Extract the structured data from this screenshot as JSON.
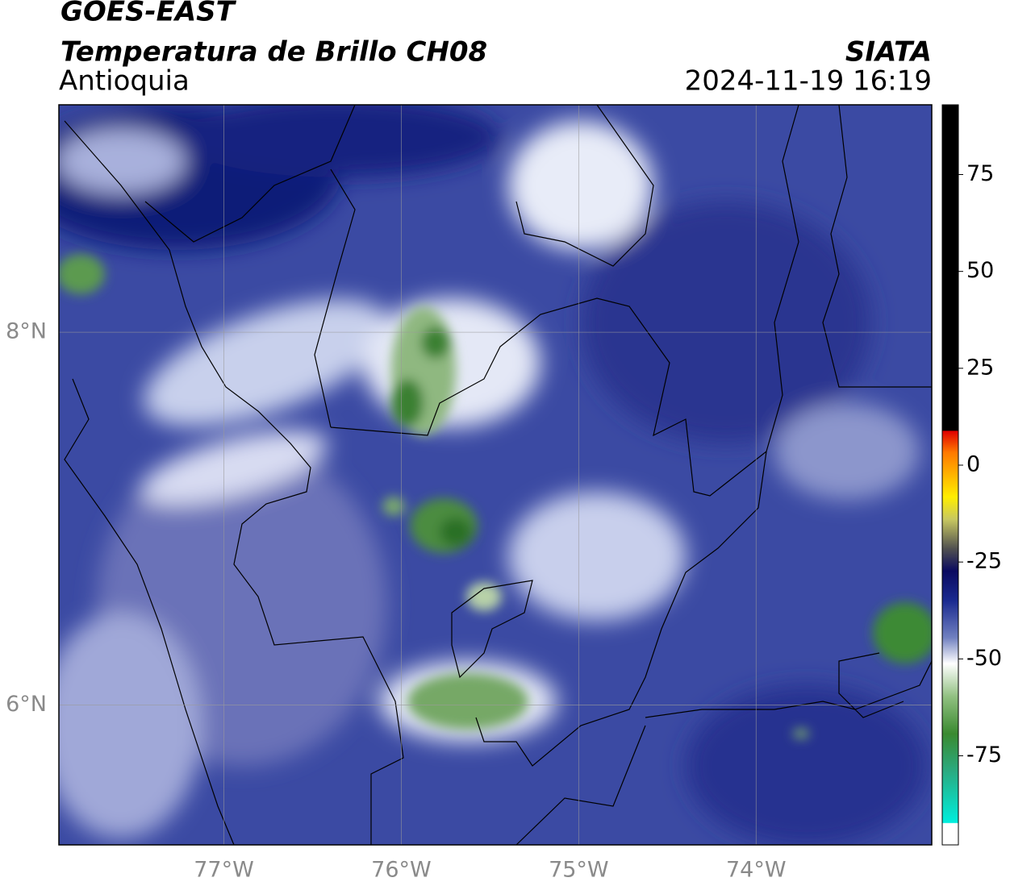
{
  "header": {
    "title": "GOES-EAST",
    "subtitle": "Temperatura de Brillo CH08",
    "region": "Antioquia",
    "source": "SIATA",
    "datetime": "2024-11-19 16:19"
  },
  "map": {
    "xlim": [
      -77.93,
      -73.01
    ],
    "ylim": [
      5.25,
      9.22
    ],
    "xticks": [
      {
        "value": -77,
        "label": "77°W"
      },
      {
        "value": -76,
        "label": "76°W"
      },
      {
        "value": -75,
        "label": "75°W"
      },
      {
        "value": -74,
        "label": "74°W"
      }
    ],
    "yticks": [
      {
        "value": 8,
        "label": "8°N"
      },
      {
        "value": 6,
        "label": "6°N"
      }
    ]
  },
  "colorbar": {
    "lim": [
      -98,
      93
    ],
    "ticks": [
      75,
      50,
      25,
      0,
      -25,
      -50,
      -75
    ]
  }
}
